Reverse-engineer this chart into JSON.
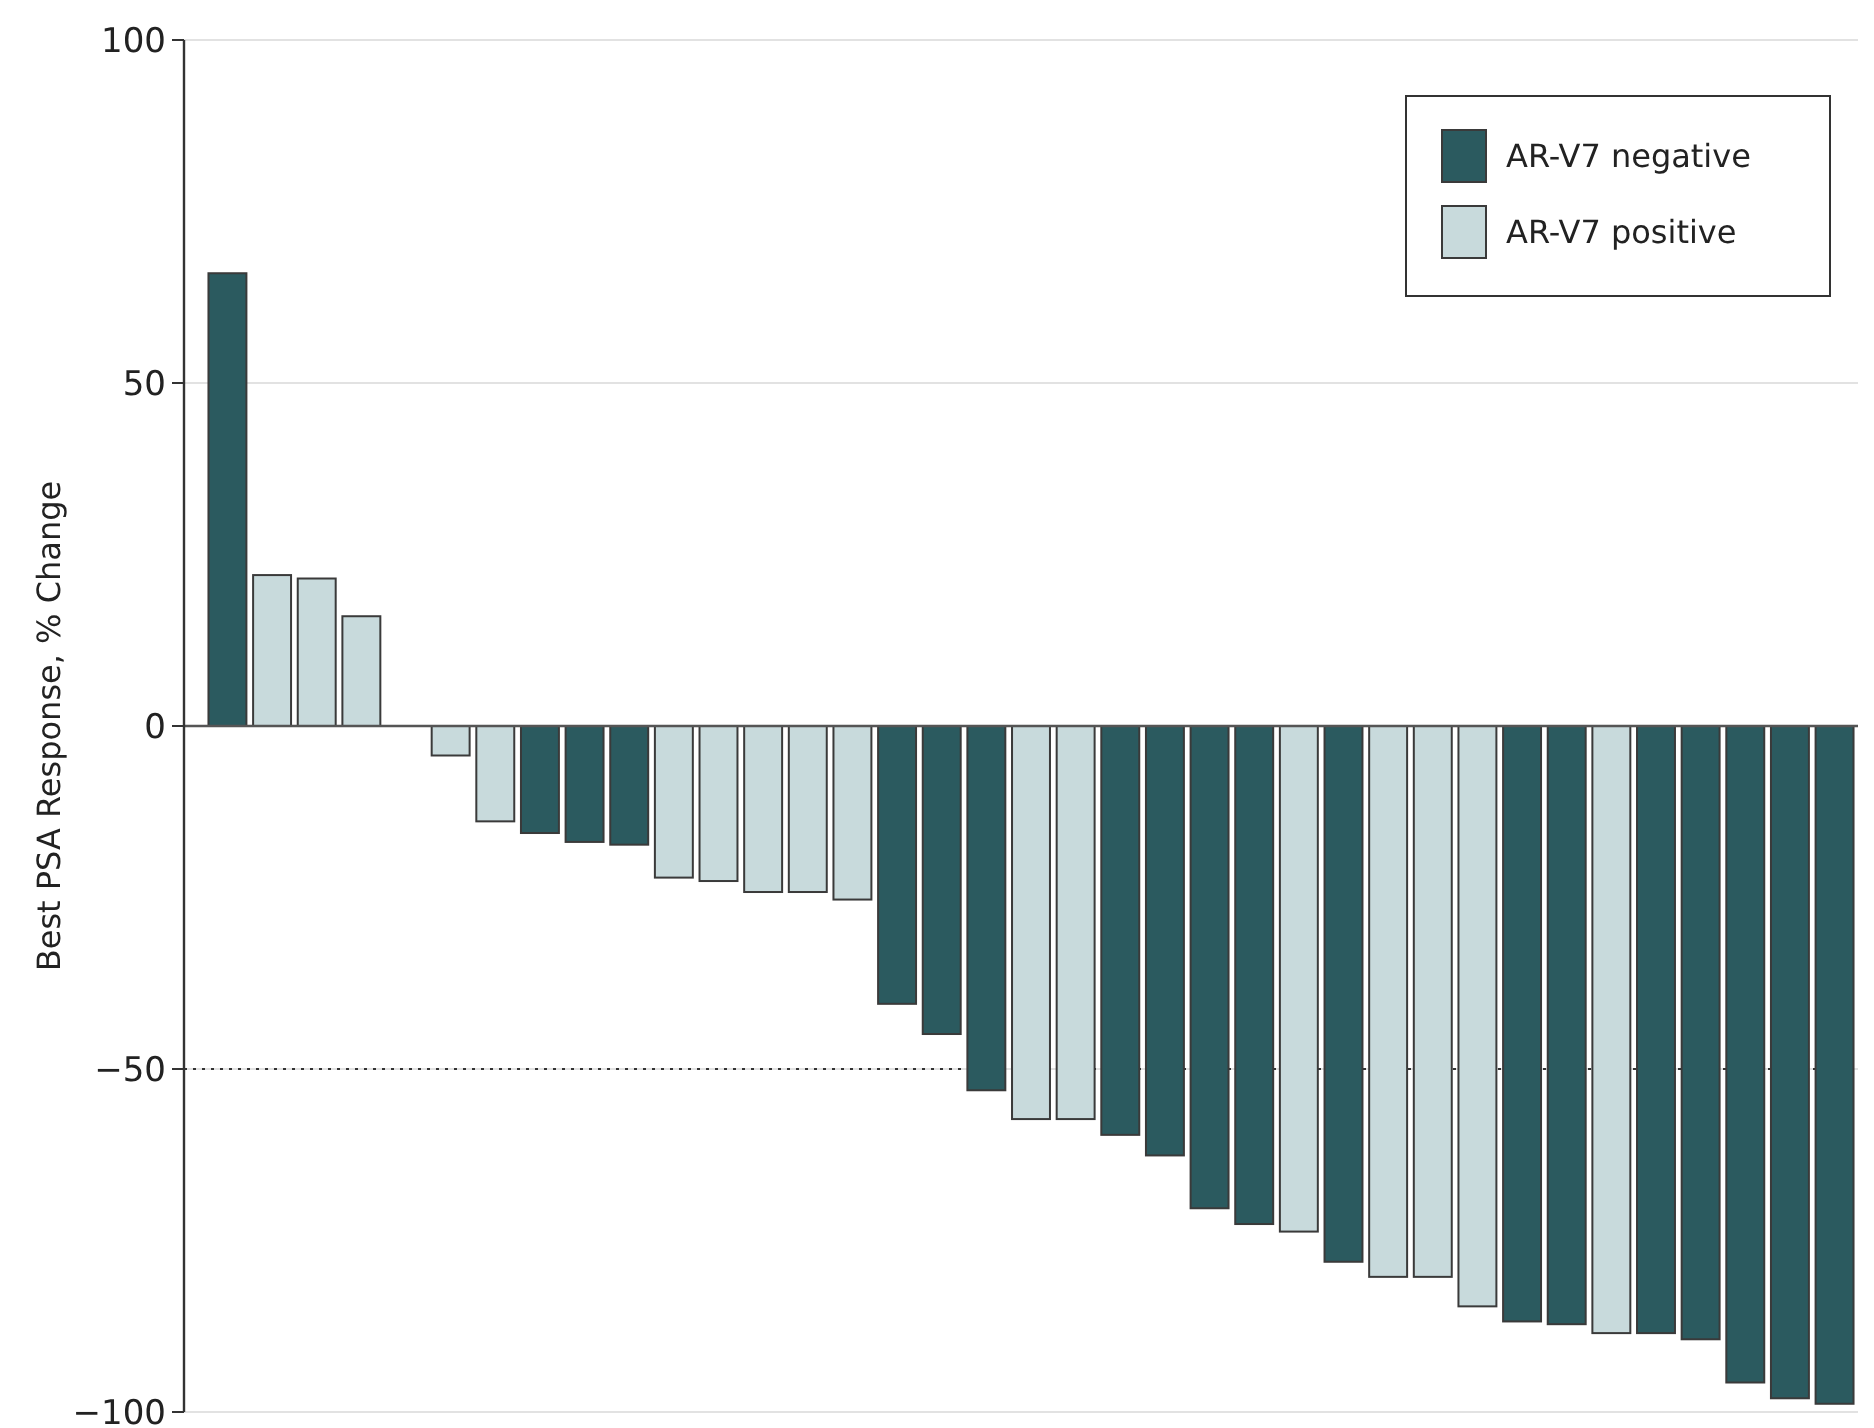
{
  "chart_data": {
    "type": "bar",
    "ylabel": "Best PSA Response, % Change",
    "categories": [
      null,
      null,
      null,
      null,
      null,
      null,
      null,
      null,
      null,
      null,
      null,
      null,
      null,
      null,
      null,
      null,
      null,
      null,
      null,
      null,
      null,
      null,
      null,
      null,
      null,
      null,
      null,
      null,
      null,
      null,
      null,
      null,
      null,
      null,
      null,
      null,
      null
    ],
    "series": [
      {
        "name": "AR-V7 negative",
        "color": "#2b5a5f",
        "values": [
          66,
          null,
          null,
          null,
          null,
          null,
          null,
          -15.6,
          -16.9,
          -17.3,
          null,
          null,
          null,
          null,
          null,
          -40.5,
          -44.9,
          -53.1,
          null,
          null,
          -59.6,
          -62.6,
          -70.3,
          -72.6,
          null,
          -78.1,
          null,
          null,
          null,
          -86.8,
          -87.2,
          null,
          -88.5,
          -89.4,
          -95.7,
          -98,
          -98.8
        ]
      },
      {
        "name": "AR-V7 positive",
        "color": "#c8dadc",
        "values": [
          null,
          22,
          21.5,
          16,
          null,
          -4.3,
          -13.9,
          null,
          null,
          null,
          -22.1,
          -22.6,
          -24.2,
          -24.2,
          -25.3,
          null,
          null,
          null,
          -57.3,
          -57.3,
          null,
          null,
          null,
          null,
          -73.7,
          null,
          -80.3,
          -80.3,
          -84.6,
          null,
          null,
          -88.5,
          null,
          null,
          null,
          null,
          null
        ]
      }
    ],
    "ylim": [
      -100,
      100
    ],
    "yticks": [
      -100,
      -50,
      0,
      50,
      100
    ],
    "grid": "y",
    "legend": "top right",
    "ref_lines": [
      {
        "axis": "y",
        "value": -50,
        "line_style": "dotted"
      }
    ]
  }
}
